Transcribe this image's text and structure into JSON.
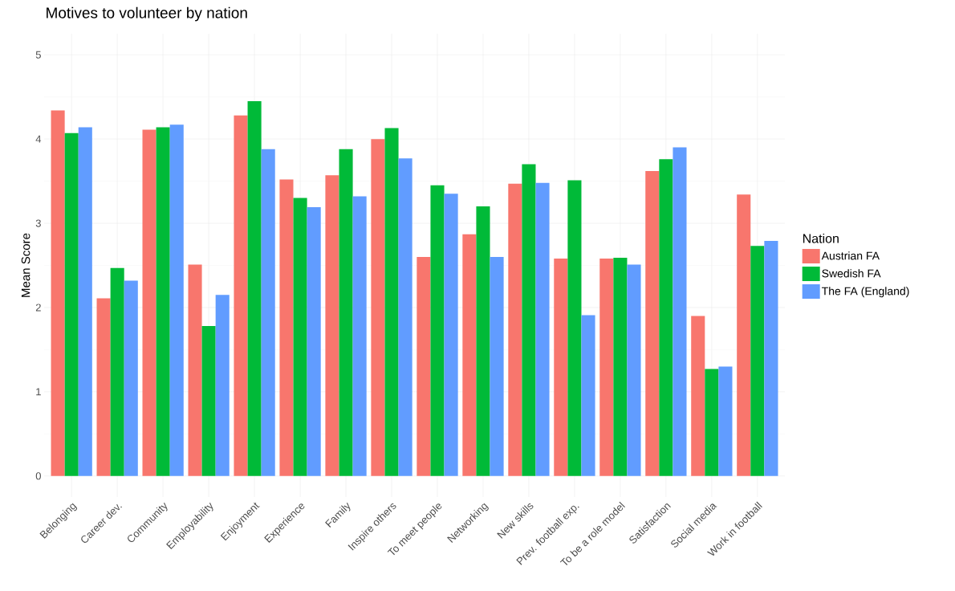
{
  "chart_data": {
    "type": "bar",
    "title": "Motives to volunteer by nation",
    "ylabel": "Mean Score",
    "legend_title": "Nation",
    "categories": [
      "Belonging",
      "Career dev.",
      "Community",
      "Employability",
      "Enjoyment",
      "Experience",
      "Family",
      "Inspire others",
      "To meet people",
      "Networking",
      "New skills",
      "Prev. football exp.",
      "To be a role model",
      "Satisfaction",
      "Social media",
      "Work in football"
    ],
    "series": [
      {
        "name": "Austrian FA",
        "color": "#f8766d",
        "values": [
          4.34,
          2.11,
          4.11,
          2.51,
          4.28,
          3.52,
          3.57,
          4.0,
          2.6,
          2.87,
          3.47,
          2.58,
          2.58,
          3.62,
          1.9,
          3.34
        ]
      },
      {
        "name": "Swedish FA",
        "color": "#00ba38",
        "values": [
          4.07,
          2.47,
          4.14,
          1.78,
          4.45,
          3.3,
          3.88,
          4.13,
          3.45,
          3.2,
          3.7,
          3.51,
          2.59,
          3.76,
          1.27,
          2.73
        ]
      },
      {
        "name": "The FA (England)",
        "color": "#619cff",
        "values": [
          4.14,
          2.32,
          4.17,
          2.15,
          3.88,
          3.19,
          3.32,
          3.77,
          3.35,
          2.6,
          3.48,
          1.91,
          2.51,
          3.9,
          1.3,
          2.79
        ]
      }
    ],
    "ylim": [
      -0.25,
      5.25
    ],
    "yticks": [
      0,
      1,
      2,
      3,
      4,
      5
    ],
    "grid": true,
    "legend": "right"
  }
}
